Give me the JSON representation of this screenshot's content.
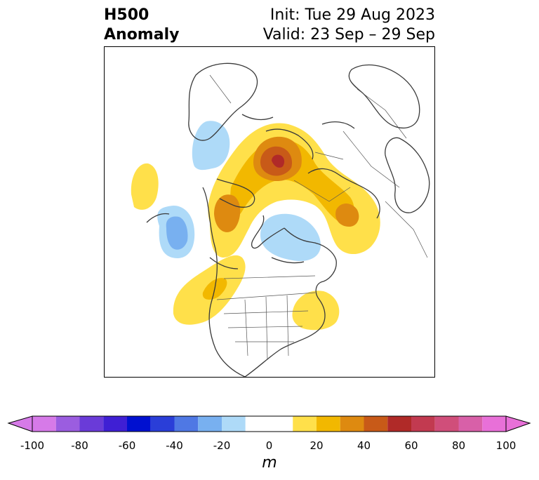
{
  "title": {
    "left_line1": "H500",
    "left_line2": "Anomaly",
    "right_line1": "Init: Tue 29 Aug 2023",
    "right_line2": "Valid: 23 Sep – 29 Sep"
  },
  "colorbar": {
    "unit": "m",
    "ticks": [
      "-100",
      "-80",
      "-60",
      "-40",
      "-20",
      "0",
      "20",
      "40",
      "60",
      "80",
      "100"
    ],
    "levels": [
      -100,
      -90,
      -80,
      -70,
      -60,
      -50,
      -40,
      -30,
      -20,
      -10,
      10,
      20,
      30,
      40,
      50,
      60,
      70,
      80,
      90,
      100
    ],
    "colors": [
      "#d67ae8",
      "#9b5de0",
      "#6a3bd8",
      "#3f1fd4",
      "#0010d0",
      "#2a3ed8",
      "#4f78e4",
      "#78b0f0",
      "#aedaf8",
      "#ffffff",
      "#ffe04a",
      "#f2b800",
      "#de8a10",
      "#c85a18",
      "#b02a28",
      "#c23a50",
      "#d04e7a",
      "#d860a8",
      "#e870d8"
    ],
    "extend_under_color": "#d67ae8",
    "extend_over_color": "#e870d8"
  }
}
